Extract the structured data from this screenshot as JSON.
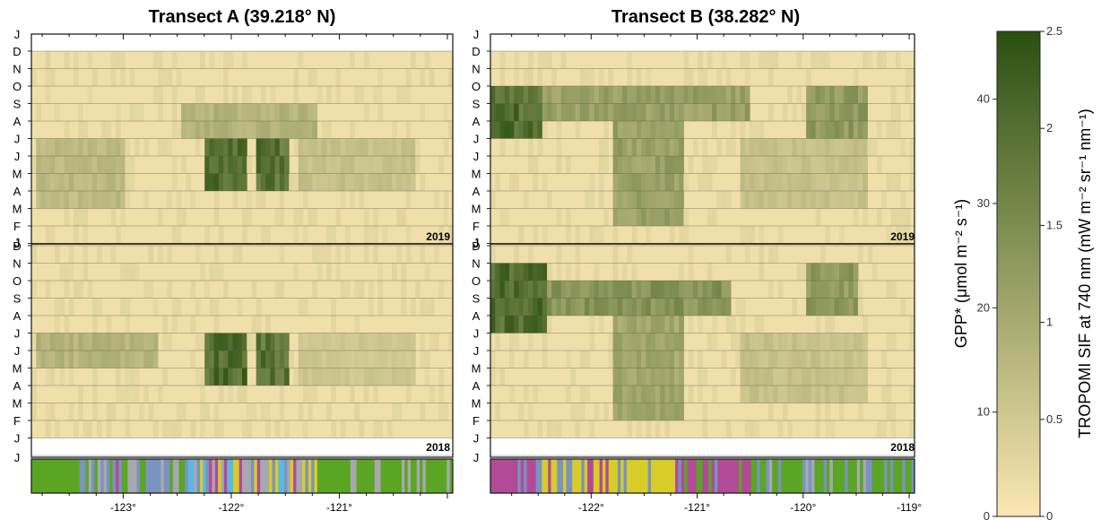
{
  "chart_data": [
    {
      "type": "heatmap",
      "title": "Transect A (39.218° N)",
      "year_labels": [
        "2019",
        "2018"
      ],
      "x_ticks": [
        "-123°",
        "-122°",
        "-121°"
      ],
      "x_tick_values": [
        -123,
        -122,
        -121
      ],
      "xlim": [
        -123.85,
        -119.95
      ],
      "months_2019": [
        "D",
        "N",
        "O",
        "S",
        "A",
        "J",
        "J",
        "M",
        "A",
        "M",
        "F",
        "J"
      ],
      "months_2018": [
        "D",
        "N",
        "O",
        "S",
        "A",
        "J",
        "J",
        "M",
        "A",
        "M",
        "F",
        "J"
      ],
      "top_label": "J",
      "hotspots_2019": [
        {
          "lon": [
            -122.25,
            -121.85
          ],
          "months": [
            5,
            7
          ],
          "intensity": 0.95
        },
        {
          "lon": [
            -121.75,
            -121.45
          ],
          "months": [
            5,
            7
          ],
          "intensity": 0.9
        },
        {
          "lon": [
            -123.8,
            -123.0
          ],
          "months": [
            5,
            8
          ],
          "intensity": 0.35
        },
        {
          "lon": [
            -121.4,
            -120.3
          ],
          "months": [
            5,
            7
          ],
          "intensity": 0.3
        },
        {
          "lon": [
            -122.45,
            -121.2
          ],
          "months": [
            3,
            4
          ],
          "intensity": 0.4
        }
      ],
      "hotspots_2018": [
        {
          "lon": [
            -122.25,
            -121.85
          ],
          "months": [
            5,
            7
          ],
          "intensity": 0.95
        },
        {
          "lon": [
            -121.75,
            -121.45
          ],
          "months": [
            5,
            7
          ],
          "intensity": 0.9
        },
        {
          "lon": [
            -123.8,
            -122.7
          ],
          "months": [
            5,
            6
          ],
          "intensity": 0.4
        },
        {
          "lon": [
            -121.4,
            -120.3
          ],
          "months": [
            5,
            7
          ],
          "intensity": 0.25
        }
      ]
    },
    {
      "type": "heatmap",
      "title": "Transect B (38.282° N)",
      "year_labels": [
        "2019",
        "2018"
      ],
      "x_ticks": [
        "-122°",
        "-121°",
        "-120°",
        "-119°"
      ],
      "x_tick_values": [
        -122,
        -121,
        -120,
        -119
      ],
      "xlim": [
        -122.95,
        -118.95
      ],
      "months_2019": [
        "D",
        "N",
        "O",
        "S",
        "A",
        "J",
        "J",
        "M",
        "A",
        "M",
        "F",
        "J"
      ],
      "months_2018": [
        "D",
        "N",
        "O",
        "S",
        "A",
        "J",
        "J",
        "M",
        "A",
        "M",
        "F",
        "J"
      ],
      "top_label": "J",
      "hotspots_2019": [
        {
          "lon": [
            -122.95,
            -122.45
          ],
          "months": [
            2,
            4
          ],
          "intensity": 0.95
        },
        {
          "lon": [
            -122.45,
            -120.5
          ],
          "months": [
            2,
            3
          ],
          "intensity": 0.55
        },
        {
          "lon": [
            -121.8,
            -121.15
          ],
          "months": [
            4,
            9
          ],
          "intensity": 0.55
        },
        {
          "lon": [
            -120.6,
            -119.4
          ],
          "months": [
            5,
            8
          ],
          "intensity": 0.3
        },
        {
          "lon": [
            -119.95,
            -119.4
          ],
          "months": [
            2,
            4
          ],
          "intensity": 0.6
        }
      ],
      "hotspots_2018": [
        {
          "lon": [
            -122.95,
            -122.4
          ],
          "months": [
            1,
            4
          ],
          "intensity": 0.95
        },
        {
          "lon": [
            -122.4,
            -120.7
          ],
          "months": [
            2,
            3
          ],
          "intensity": 0.65
        },
        {
          "lon": [
            -121.8,
            -121.15
          ],
          "months": [
            4,
            9
          ],
          "intensity": 0.5
        },
        {
          "lon": [
            -120.6,
            -119.4
          ],
          "months": [
            5,
            8
          ],
          "intensity": 0.3
        },
        {
          "lon": [
            -119.95,
            -119.5
          ],
          "months": [
            1,
            3
          ],
          "intensity": 0.6
        }
      ]
    }
  ],
  "colorbar": {
    "left_ticks": [
      "0",
      "10",
      "20",
      "30",
      "40"
    ],
    "left_tick_values": [
      0,
      10,
      20,
      30,
      40
    ],
    "left_max": 46.5,
    "right_ticks": [
      "0",
      "0.5",
      "1",
      "1.5",
      "2",
      "2.5"
    ],
    "right_tick_values": [
      0,
      0.5,
      1,
      1.5,
      2,
      2.5
    ],
    "right_max": 2.5,
    "left_label": "GPP* (μmol m⁻² s⁻¹)",
    "right_label": "TROPOMI SIF at 740 nm (mW m⁻² sr⁻¹ nm⁻¹)",
    "color_low": "#fbe7b3",
    "color_high": "#2a5010"
  },
  "landcover_colors": [
    "#5aa624",
    "#7a93c0",
    "#a8a8b0",
    "#b34a98",
    "#d8cc28",
    "#5bb9e0",
    "#8fb836",
    "#c9c9c9"
  ]
}
